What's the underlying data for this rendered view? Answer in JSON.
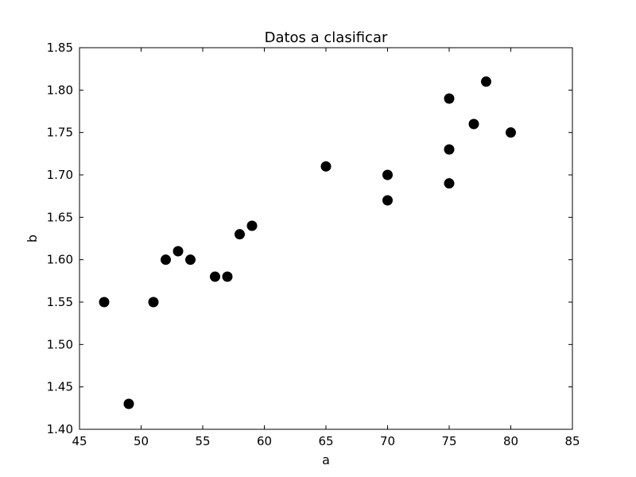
{
  "chart_data": {
    "type": "scatter",
    "title": "Datos a clasificar",
    "xlabel": "a",
    "ylabel": "b",
    "xlim": [
      45,
      85
    ],
    "ylim": [
      1.4,
      1.85
    ],
    "xticks": [
      "45",
      "50",
      "55",
      "60",
      "65",
      "70",
      "75",
      "80",
      "85"
    ],
    "yticks": [
      "1.40",
      "1.45",
      "1.50",
      "1.55",
      "1.60",
      "1.65",
      "1.70",
      "1.75",
      "1.80",
      "1.85"
    ],
    "grid": false,
    "marker_color": "#000000",
    "points": [
      {
        "x": 47,
        "y": 1.55
      },
      {
        "x": 49,
        "y": 1.43
      },
      {
        "x": 51,
        "y": 1.55
      },
      {
        "x": 52,
        "y": 1.6
      },
      {
        "x": 53,
        "y": 1.61
      },
      {
        "x": 54,
        "y": 1.6
      },
      {
        "x": 56,
        "y": 1.58
      },
      {
        "x": 57,
        "y": 1.58
      },
      {
        "x": 58,
        "y": 1.63
      },
      {
        "x": 59,
        "y": 1.64
      },
      {
        "x": 65,
        "y": 1.71
      },
      {
        "x": 70,
        "y": 1.7
      },
      {
        "x": 70,
        "y": 1.67
      },
      {
        "x": 75,
        "y": 1.79
      },
      {
        "x": 75,
        "y": 1.73
      },
      {
        "x": 75,
        "y": 1.69
      },
      {
        "x": 77,
        "y": 1.76
      },
      {
        "x": 78,
        "y": 1.81
      },
      {
        "x": 80,
        "y": 1.75
      }
    ]
  }
}
